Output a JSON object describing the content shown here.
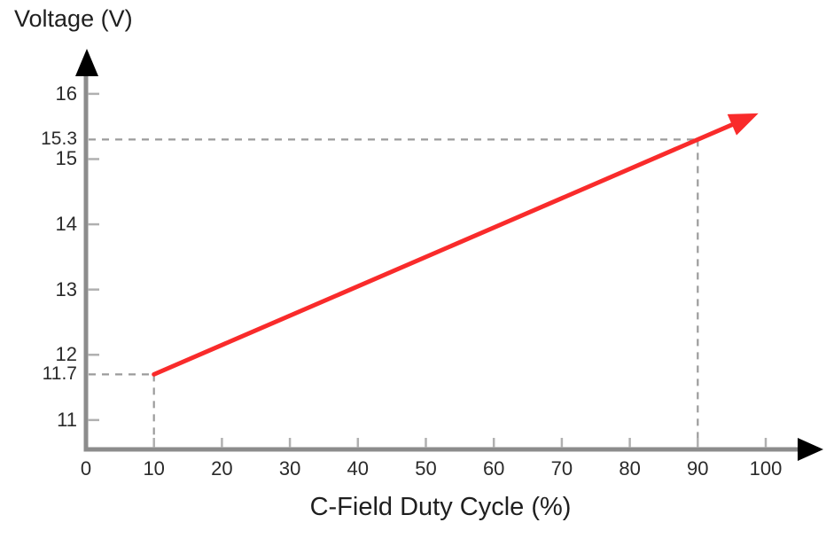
{
  "chart_data": {
    "type": "line",
    "title": "",
    "ylabel": "Voltage (V)",
    "xlabel": "C-Field Duty Cycle (%)",
    "xlim": [
      0,
      105
    ],
    "ylim": [
      10.55,
      16.55
    ],
    "x_ticks": [
      0,
      10,
      20,
      30,
      40,
      50,
      60,
      70,
      80,
      90,
      100
    ],
    "y_ticks": [
      11,
      12,
      13,
      14,
      15,
      16
    ],
    "grid": false,
    "legend": false,
    "series": [
      {
        "name": "voltage-vs-c-field-duty-cycle",
        "x": [
          10,
          90
        ],
        "y": [
          11.7,
          15.3
        ],
        "color": "#f92b2b",
        "arrow_end": true,
        "extends_to_x": 96
      }
    ],
    "reference_points": [
      {
        "x": 10,
        "y": 11.7,
        "y_axis_label": "11.7"
      },
      {
        "x": 90,
        "y": 15.3,
        "y_axis_label": "15.3"
      }
    ],
    "colors": {
      "line": "#f92b2b",
      "axis": "#8c8c8c",
      "tick": "#b0b0b0",
      "arrowhead": "#000000",
      "dashed_guide": "#9b9b9b",
      "label_text": "#1f1f1f"
    }
  }
}
